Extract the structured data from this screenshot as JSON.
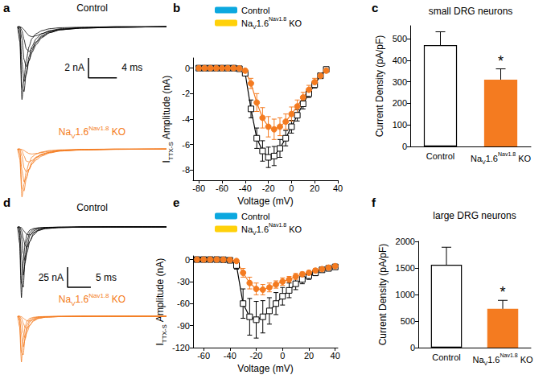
{
  "chart_data": [
    {
      "type": "traces",
      "label": "a",
      "tick_labels": false,
      "groups": [
        {
          "title": "Control",
          "color": "#000000",
          "xlim": [
            0,
            21
          ],
          "ylim": [
            -7.5,
            0.5
          ],
          "x": [
            0,
            0.3,
            0.6,
            0.9,
            1.2,
            1.6,
            2.0,
            2.6,
            3.4,
            4.5,
            6,
            9,
            14,
            21
          ],
          "traces": [
            [
              0,
              -1.5,
              -7.3,
              -5.2,
              -3.4,
              -2.0,
              -1.2,
              -0.7,
              -0.4,
              -0.2,
              -0.1,
              -0.05,
              0,
              0
            ],
            [
              0,
              -0.8,
              -6.0,
              -6.5,
              -4.6,
              -3.0,
              -2.0,
              -1.2,
              -0.7,
              -0.4,
              -0.2,
              -0.1,
              0,
              0
            ],
            [
              0,
              -0.3,
              -3.5,
              -5.5,
              -4.8,
              -3.4,
              -2.4,
              -1.5,
              -0.9,
              -0.5,
              -0.3,
              -0.1,
              -0.05,
              0
            ],
            [
              0,
              -0.1,
              -1.2,
              -3.3,
              -4.0,
              -3.4,
              -2.6,
              -1.8,
              -1.1,
              -0.6,
              -0.3,
              -0.15,
              -0.05,
              0
            ],
            [
              0,
              0,
              -0.4,
              -1.3,
              -2.2,
              -2.5,
              -2.2,
              -1.6,
              -1.0,
              -0.6,
              -0.3,
              -0.15,
              -0.05,
              0
            ],
            [
              0,
              0,
              -0.1,
              -0.3,
              -0.6,
              -0.9,
              -1.0,
              -0.9,
              -0.7,
              -0.45,
              -0.25,
              -0.1,
              -0.05,
              0
            ]
          ]
        },
        {
          "title": [
            {
              "text": "Na"
            },
            {
              "text": "V",
              "style": "sub"
            },
            {
              "text": "1.6"
            },
            {
              "text": "Nav1.8",
              "style": "sup"
            },
            {
              "text": " KO"
            }
          ],
          "color": "#f47b20",
          "xlim": [
            0,
            21
          ],
          "ylim": [
            -5,
            0.5
          ],
          "x": [
            0,
            0.3,
            0.6,
            0.9,
            1.2,
            1.6,
            2.0,
            2.6,
            3.4,
            4.5,
            6,
            9,
            14,
            21
          ],
          "traces": [
            [
              0,
              -1.0,
              -4.8,
              -3.5,
              -2.3,
              -1.4,
              -0.8,
              -0.5,
              -0.3,
              -0.15,
              -0.08,
              -0.03,
              0,
              0
            ],
            [
              0,
              -0.5,
              -3.9,
              -4.2,
              -3.0,
              -2.0,
              -1.3,
              -0.8,
              -0.5,
              -0.3,
              -0.15,
              -0.07,
              0,
              0
            ],
            [
              0,
              -0.2,
              -2.1,
              -3.3,
              -2.9,
              -2.1,
              -1.5,
              -0.9,
              -0.6,
              -0.35,
              -0.2,
              -0.08,
              -0.03,
              0
            ],
            [
              0,
              -0.05,
              -0.7,
              -1.9,
              -2.3,
              -2.0,
              -1.5,
              -1.1,
              -0.7,
              -0.4,
              -0.2,
              -0.1,
              -0.03,
              0
            ],
            [
              0,
              0,
              -0.2,
              -0.7,
              -1.2,
              -1.3,
              -1.15,
              -0.85,
              -0.55,
              -0.33,
              -0.17,
              -0.08,
              -0.03,
              0
            ],
            [
              0,
              0,
              -0.05,
              -0.15,
              -0.3,
              -0.45,
              -0.5,
              -0.45,
              -0.35,
              -0.22,
              -0.12,
              -0.05,
              -0.02,
              0
            ]
          ]
        }
      ],
      "scale_bar": {
        "x": 4,
        "x_label": "4 ms",
        "y": 2,
        "y_label": "2 nA"
      }
    },
    {
      "type": "line",
      "label": "b",
      "grid": false,
      "legend": "upper left",
      "x_label": "Voltage (mV)",
      "y_label": [
        {
          "text": "I"
        },
        {
          "text": "TTX-S",
          "style": "sub"
        },
        {
          "text": " Amplitude (nA)"
        }
      ],
      "xlim": [
        -85,
        40
      ],
      "xticks": [
        -80,
        -60,
        -40,
        -20,
        0,
        20,
        40
      ],
      "ylim": [
        -8.8,
        0.8
      ],
      "yticks": [
        -8,
        -6,
        -4,
        -2,
        0
      ],
      "x": [
        -80,
        -75,
        -70,
        -65,
        -60,
        -55,
        -50,
        -45,
        -40,
        -35,
        -30,
        -25,
        -20,
        -15,
        -10,
        -5,
        0,
        5,
        10,
        15,
        20,
        25,
        30
      ],
      "series": [
        {
          "name": "Control",
          "color": "#000000",
          "marker": "square-open",
          "values": [
            0,
            0,
            0,
            0,
            0,
            0,
            0,
            -0.05,
            -0.4,
            -3.2,
            -5.5,
            -6.5,
            -7.0,
            -6.9,
            -6.3,
            -5.5,
            -4.6,
            -3.7,
            -2.8,
            -2.0,
            -1.3,
            -0.6,
            -0.1
          ],
          "errors": [
            0,
            0,
            0,
            0,
            0,
            0,
            0,
            0.02,
            0.15,
            0.7,
            0.8,
            0.8,
            0.8,
            0.75,
            0.7,
            0.6,
            0.5,
            0.45,
            0.4,
            0.3,
            0.25,
            0.2,
            0.1
          ]
        },
        {
          "name": [
            {
              "text": "Na"
            },
            {
              "text": "V",
              "style": "sub"
            },
            {
              "text": "1.6"
            },
            {
              "text": "Nav1.8",
              "style": "sup"
            },
            {
              "text": " KO"
            }
          ],
          "color": "#f47b20",
          "marker": "circle",
          "values": [
            0,
            0,
            0,
            0,
            0,
            0,
            0,
            -0.02,
            -0.2,
            -1.2,
            -2.7,
            -3.9,
            -4.6,
            -4.8,
            -4.6,
            -4.2,
            -3.6,
            -3.0,
            -2.3,
            -1.7,
            -1.1,
            -0.6,
            -0.2
          ],
          "errors": [
            0,
            0,
            0,
            0,
            0,
            0,
            0,
            0.02,
            0.1,
            0.4,
            0.7,
            0.8,
            0.8,
            0.8,
            0.7,
            0.6,
            0.55,
            0.5,
            0.4,
            0.35,
            0.3,
            0.2,
            0.1
          ]
        }
      ]
    },
    {
      "type": "bar",
      "label": "c",
      "grid": false,
      "title": "small DRG neurons",
      "y_label": "Current Density (pA/pF)",
      "categories": [
        "Control",
        [
          {
            "text": "Na"
          },
          {
            "text": "V",
            "style": "sub"
          },
          {
            "text": "1.6"
          },
          {
            "text": "Nav1.8",
            "style": "sup"
          },
          {
            "text": " KO"
          }
        ]
      ],
      "values": [
        470,
        310
      ],
      "errors": [
        62,
        50
      ],
      "colors": [
        "#ffffff",
        "#f47b20"
      ],
      "annotations": [
        null,
        "*"
      ],
      "ylim": [
        0,
        560
      ],
      "yticks": [
        0,
        100,
        200,
        300,
        400,
        500
      ]
    },
    {
      "type": "traces",
      "label": "d",
      "tick_labels": false,
      "groups": [
        {
          "title": "Control",
          "color": "#000000",
          "xlim": [
            0,
            32
          ],
          "ylim": [
            -92,
            5
          ],
          "x": [
            0,
            0.4,
            0.8,
            1.2,
            1.6,
            2.0,
            2.6,
            3.4,
            4.5,
            6,
            9,
            14,
            20,
            32
          ],
          "traces": [
            [
              0,
              -20,
              -88,
              -45,
              -20,
              -9,
              -4,
              -2,
              -1,
              -0.5,
              -0.2,
              0,
              0,
              0
            ],
            [
              0,
              -8,
              -70,
              -75,
              -38,
              -17,
              -7,
              -3,
              -1.5,
              -0.7,
              -0.3,
              0,
              0,
              0
            ],
            [
              0,
              -3,
              -35,
              -60,
              -45,
              -25,
              -11,
              -5,
              -2,
              -1,
              -0.4,
              -0.1,
              0,
              0
            ],
            [
              0,
              -1,
              -12,
              -33,
              -42,
              -32,
              -18,
              -8,
              -3.5,
              -1.5,
              -0.6,
              -0.2,
              0,
              0
            ],
            [
              0,
              0,
              -4,
              -14,
              -23,
              -25,
              -18,
              -10,
              -4.5,
              -2,
              -0.8,
              -0.3,
              0,
              0
            ],
            [
              0,
              0,
              -1,
              -4,
              -7,
              -9.5,
              -10,
              -7,
              -4,
              -2,
              -0.8,
              -0.3,
              0,
              0
            ]
          ]
        },
        {
          "title": [
            {
              "text": "Na"
            },
            {
              "text": "V",
              "style": "sub"
            },
            {
              "text": "1.6"
            },
            {
              "text": "Nav1.8",
              "style": "sup"
            },
            {
              "text": " KO"
            }
          ],
          "color": "#f47b20",
          "xlim": [
            0,
            32
          ],
          "ylim": [
            -60,
            5
          ],
          "x": [
            0,
            0.4,
            0.8,
            1.2,
            1.6,
            2.0,
            2.6,
            3.4,
            4.5,
            6,
            9,
            14,
            20,
            32
          ],
          "traces": [
            [
              0,
              -13,
              -57,
              -29,
              -13,
              -6,
              -2.6,
              -1.3,
              -0.6,
              -0.3,
              -0.1,
              0,
              0,
              0
            ],
            [
              0,
              -5,
              -45,
              -48,
              -24,
              -11,
              -4.5,
              -2,
              -1,
              -0.5,
              -0.2,
              0,
              0,
              0
            ],
            [
              0,
              -2,
              -22,
              -38,
              -29,
              -16,
              -7,
              -3.2,
              -1.3,
              -0.6,
              -0.25,
              -0.05,
              0,
              0
            ],
            [
              0,
              -0.6,
              -8,
              -21,
              -27,
              -20,
              -11.5,
              -5,
              -2.2,
              -1,
              -0.4,
              -0.1,
              0,
              0
            ],
            [
              0,
              0,
              -2.5,
              -8.5,
              -14,
              -15,
              -11,
              -6,
              -2.7,
              -1.2,
              -0.5,
              -0.2,
              0,
              0
            ],
            [
              0,
              0,
              -0.6,
              -2.4,
              -4.2,
              -5.7,
              -6,
              -4.2,
              -2.4,
              -1.2,
              -0.5,
              -0.2,
              0,
              0
            ]
          ]
        }
      ],
      "scale_bar": {
        "x": 5,
        "x_label": "5 ms",
        "y": 25,
        "y_label": "25 nA"
      }
    },
    {
      "type": "line",
      "label": "e",
      "grid": false,
      "legend": "upper left",
      "x_label": "Voltage (mV)",
      "y_label": [
        {
          "text": "I"
        },
        {
          "text": "TTX-S",
          "style": "sub"
        },
        {
          "text": " Amplitude (nA)"
        }
      ],
      "xlim": [
        -68,
        42
      ],
      "xticks": [
        -60,
        -40,
        -20,
        0,
        20,
        40
      ],
      "ylim": [
        -120,
        5
      ],
      "yticks": [
        -120,
        -90,
        -60,
        -30,
        0
      ],
      "x": [
        -65,
        -60,
        -55,
        -50,
        -45,
        -40,
        -35,
        -30,
        -25,
        -20,
        -15,
        -10,
        -5,
        0,
        5,
        10,
        15,
        20,
        25,
        30,
        35,
        40
      ],
      "series": [
        {
          "name": "Control",
          "color": "#000000",
          "marker": "square-open",
          "values": [
            0,
            0,
            0,
            0,
            -0.2,
            -1,
            -8,
            -60,
            -78,
            -82,
            -78,
            -70,
            -60,
            -50,
            -42,
            -33,
            -27,
            -22,
            -18,
            -14,
            -12,
            -10
          ],
          "errors": [
            0,
            0,
            0,
            0,
            0.2,
            1,
            5,
            20,
            25,
            25,
            22,
            18,
            15,
            12,
            10,
            8,
            6,
            5,
            4,
            3,
            3,
            2
          ]
        },
        {
          "name": [
            {
              "text": "Na"
            },
            {
              "text": "V",
              "style": "sub"
            },
            {
              "text": "1.6"
            },
            {
              "text": "Nav1.8",
              "style": "sup"
            },
            {
              "text": " KO"
            }
          ],
          "color": "#f47b20",
          "marker": "circle",
          "values": [
            0,
            0,
            0,
            0,
            -0.1,
            -0.5,
            -2,
            -18,
            -32,
            -40,
            -41,
            -38,
            -34,
            -30,
            -27,
            -23,
            -20,
            -18,
            -15,
            -13,
            -11,
            -9
          ],
          "errors": [
            0,
            0,
            0,
            0,
            0.1,
            0.3,
            1,
            6,
            8,
            8,
            7,
            6,
            5,
            5,
            4,
            4,
            3,
            3,
            3,
            2,
            2,
            2
          ]
        }
      ]
    },
    {
      "type": "bar",
      "label": "f",
      "grid": false,
      "title": "large DRG neurons",
      "y_label": "Current Density (pA/pF)",
      "categories": [
        "Control",
        [
          {
            "text": "Na"
          },
          {
            "text": "V",
            "style": "sub"
          },
          {
            "text": "1.6"
          },
          {
            "text": "Nav1.8",
            "style": "sup"
          },
          {
            "text": " KO"
          }
        ]
      ],
      "values": [
        1560,
        730
      ],
      "errors": [
        330,
        160
      ],
      "colors": [
        "#ffffff",
        "#f47b20"
      ],
      "annotations": [
        null,
        "*"
      ],
      "ylim": [
        0,
        2000
      ],
      "yticks": [
        0,
        500,
        1000,
        1500,
        2000
      ]
    }
  ]
}
